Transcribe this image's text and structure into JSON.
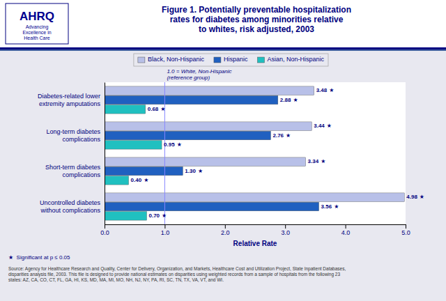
{
  "chart_data": {
    "type": "bar",
    "orientation": "horizontal",
    "title": "Figure 1. Potentially preventable hospitalization\nrates for diabetes among minorities relative\nto whites, risk adjusted, 2003",
    "categories": [
      "Diabetes-related lower\nextremity amputations",
      "Long-term diabetes\ncomplications",
      "Short-term diabetes\ncomplications",
      "Uncontrolled diabetes\nwithout complications"
    ],
    "series": [
      {
        "name": "Black, Non-Hispanic",
        "color": "#b8c0e8",
        "values": [
          3.48,
          3.44,
          3.34,
          4.98
        ],
        "value_labels": [
          "3.48",
          "3.44",
          "3.34",
          "4.98"
        ],
        "significant": [
          true,
          true,
          true,
          true
        ]
      },
      {
        "name": "Hispanic",
        "color": "#2060c0",
        "values": [
          2.88,
          2.76,
          1.3,
          3.56
        ],
        "value_labels": [
          "2.88",
          "2.76",
          "1.30",
          "3.56"
        ],
        "significant": [
          true,
          true,
          true,
          true
        ]
      },
      {
        "name": "Asian, Non-Hispanic",
        "color": "#20c0c0",
        "values": [
          0.68,
          0.95,
          0.4,
          0.7
        ],
        "value_labels": [
          "0.68",
          "0.95",
          "0.40",
          "0.70"
        ],
        "significant": [
          true,
          true,
          true,
          true
        ]
      }
    ],
    "xlabel": "Relative Rate",
    "xlim": [
      0.0,
      5.0
    ],
    "xticks": [
      {
        "value": 0.0,
        "label": "0.0"
      },
      {
        "value": 1.0,
        "label": "1.0"
      },
      {
        "value": 2.0,
        "label": "2.0"
      },
      {
        "value": 3.0,
        "label": "3.0"
      },
      {
        "value": 4.0,
        "label": "4.0"
      },
      {
        "value": 5.0,
        "label": "5.0"
      }
    ],
    "data_labels": true,
    "legend": "top",
    "grid": false,
    "reference_line": 1.0,
    "reference_label": "1.0 = White, Non-Hispanic\n(reference group)",
    "significance_marker": "★",
    "footnote": "★  Significant at p ≤ 0.05",
    "source": "Source: Agency for Healthcare Research and Quality, Center for Delivery, Organization, and Markets, Healthcare Cost and Utilization Project, State Inpatient Databases,\ndisparities analysis file, 2003. This file is designed to provide national estimates on disparities using weighted records from a sample of hospitals from the following 23\nstates: AZ, CA, CO, CT, FL, GA, HI, KS, MD, MA, MI, MO, NH, NJ, NY, PA, RI, SC, TN, TX, VA, VT, and WI.",
    "logo_text": "AHRQ",
    "logo_subtext": "Advancing\nExcellence in\nHealth Care"
  }
}
